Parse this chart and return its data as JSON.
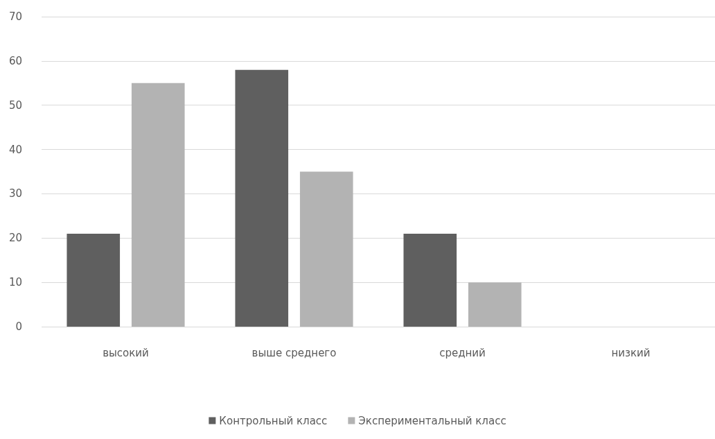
{
  "chart_data": {
    "type": "bar",
    "categories": [
      "высокий",
      "выше среднего",
      "средний",
      "низкий"
    ],
    "series": [
      {
        "name": "Контрольный класс",
        "color": "#5f5f5f",
        "values": [
          21,
          58,
          21,
          0
        ]
      },
      {
        "name": "Экспериментальный класс",
        "color": "#b3b3b3",
        "values": [
          55,
          35,
          10,
          0
        ]
      }
    ],
    "ylim": [
      0,
      70
    ],
    "yticks": [
      0,
      10,
      20,
      30,
      40,
      50,
      60,
      70
    ],
    "grid": "y",
    "legend": "bottom"
  }
}
